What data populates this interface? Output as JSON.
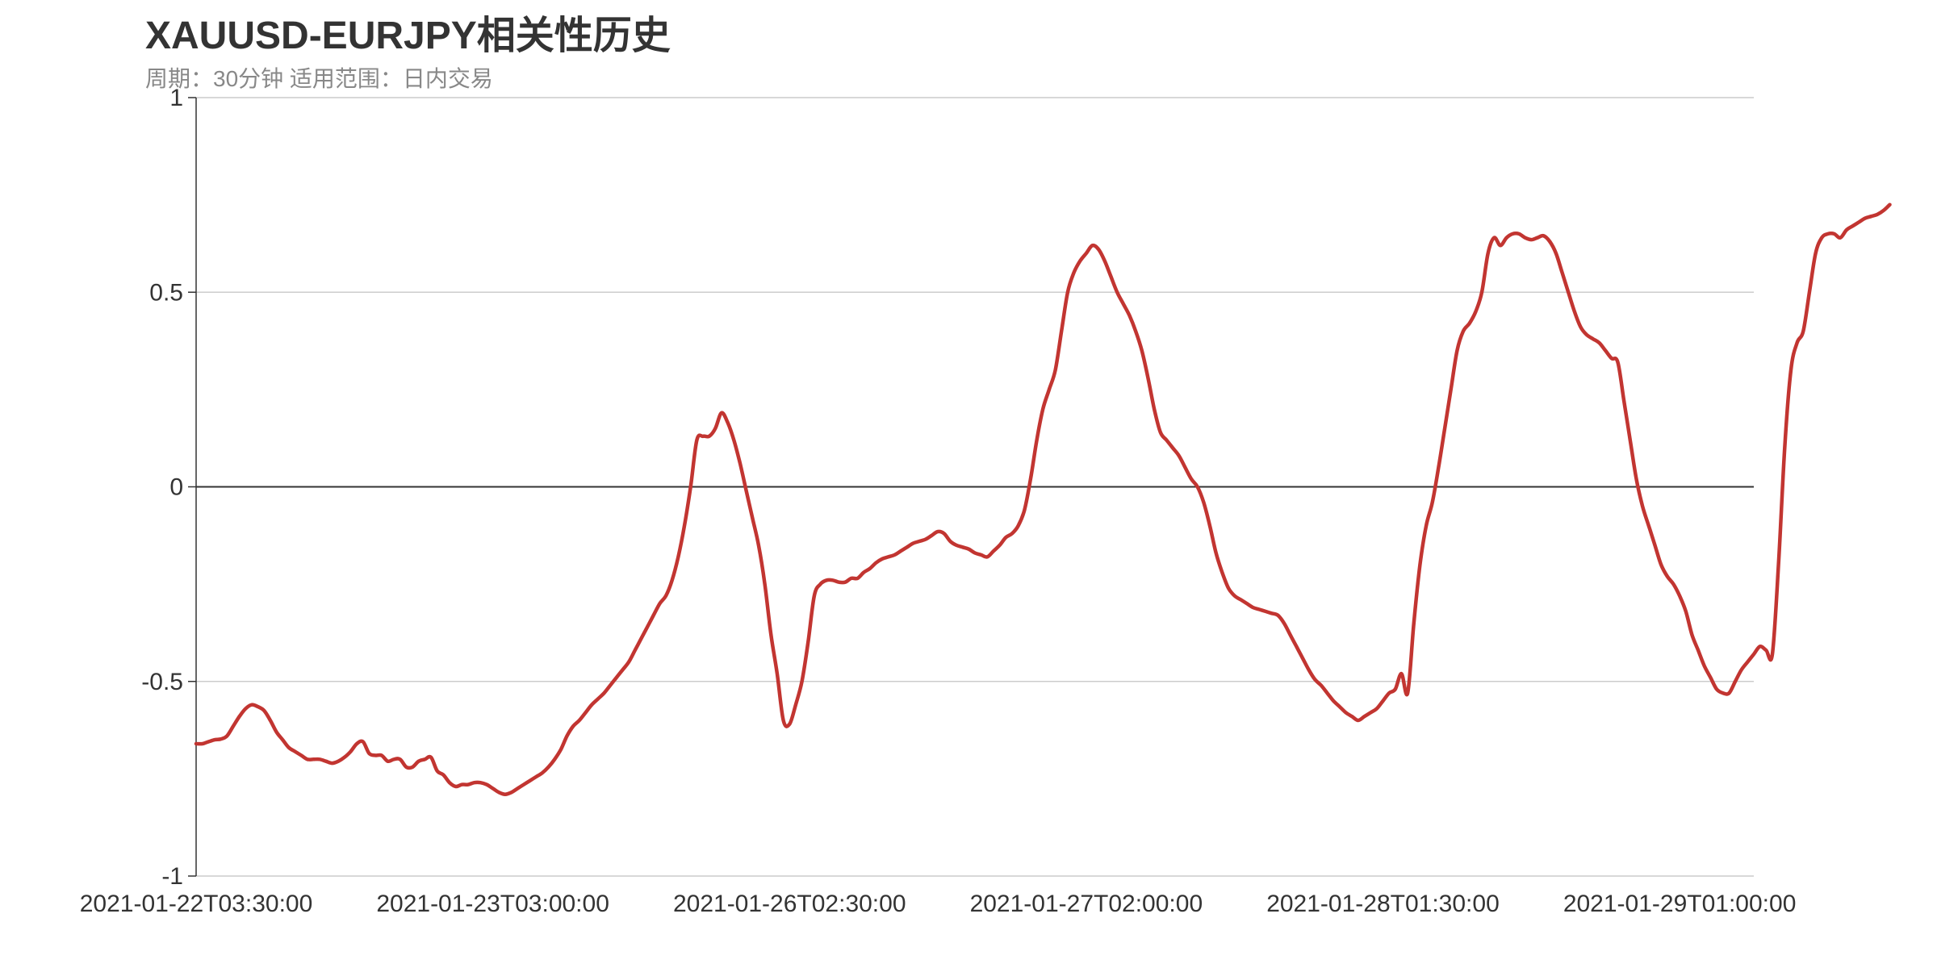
{
  "title": "XAUUSD-EURJPY相关性历史",
  "subtitle": "周期：30分钟 适用范围：日内交易",
  "colors": {
    "line": "#c23531",
    "axis": "#333333",
    "grid": "#cccccc",
    "zero_line": "#333333",
    "title": "#333333",
    "subtitle": "#888888"
  },
  "chart_data": {
    "type": "line",
    "title": "XAUUSD-EURJPY相关性历史",
    "subtitle": "周期：30分钟 适用范围：日内交易",
    "xlabel": "",
    "ylabel": "",
    "ylim": [
      -1,
      1
    ],
    "yticks": [
      1,
      0.5,
      0,
      -0.5,
      -1
    ],
    "ytick_labels": [
      "1",
      "0.5",
      "0",
      "-0.5",
      "-1"
    ],
    "xtick_labels": [
      "2021-01-22T03:30:00",
      "2021-01-23T03:00:00",
      "2021-01-26T02:30:00",
      "2021-01-27T02:00:00",
      "2021-01-28T01:30:00",
      "2021-01-29T01:00:00"
    ],
    "xtick_positions": [
      0,
      48,
      96,
      144,
      192,
      240
    ],
    "x_range": [
      0,
      252
    ],
    "grid": true,
    "legend": "none",
    "series": [
      {
        "values": [
          -0.66,
          -0.66,
          -0.655,
          -0.65,
          -0.648,
          -0.64,
          -0.615,
          -0.59,
          -0.57,
          -0.56,
          -0.565,
          -0.575,
          -0.6,
          -0.63,
          -0.65,
          -0.67,
          -0.68,
          -0.69,
          -0.7,
          -0.7,
          -0.7,
          -0.705,
          -0.71,
          -0.705,
          -0.695,
          -0.68,
          -0.66,
          -0.655,
          -0.685,
          -0.69,
          -0.69,
          -0.705,
          -0.7,
          -0.7,
          -0.72,
          -0.72,
          -0.705,
          -0.7,
          -0.695,
          -0.73,
          -0.74,
          -0.76,
          -0.77,
          -0.765,
          -0.765,
          -0.76,
          -0.76,
          -0.765,
          -0.775,
          -0.785,
          -0.79,
          -0.785,
          -0.775,
          -0.765,
          -0.755,
          -0.745,
          -0.735,
          -0.72,
          -0.7,
          -0.675,
          -0.64,
          -0.615,
          -0.6,
          -0.58,
          -0.56,
          -0.545,
          -0.53,
          -0.51,
          -0.49,
          -0.47,
          -0.45,
          -0.42,
          -0.39,
          -0.36,
          -0.33,
          -0.3,
          -0.28,
          -0.24,
          -0.18,
          -0.1,
          0.0,
          0.12,
          0.13,
          0.13,
          0.15,
          0.19,
          0.165,
          0.12,
          0.06,
          -0.01,
          -0.08,
          -0.15,
          -0.25,
          -0.38,
          -0.48,
          -0.6,
          -0.61,
          -0.56,
          -0.5,
          -0.4,
          -0.28,
          -0.25,
          -0.24,
          -0.24,
          -0.245,
          -0.245,
          -0.235,
          -0.235,
          -0.22,
          -0.21,
          -0.195,
          -0.185,
          -0.18,
          -0.175,
          -0.165,
          -0.155,
          -0.145,
          -0.14,
          -0.135,
          -0.125,
          -0.115,
          -0.12,
          -0.14,
          -0.15,
          -0.155,
          -0.16,
          -0.17,
          -0.175,
          -0.18,
          -0.165,
          -0.15,
          -0.13,
          -0.12,
          -0.1,
          -0.06,
          0.02,
          0.12,
          0.2,
          0.25,
          0.3,
          0.4,
          0.5,
          0.55,
          0.58,
          0.6,
          0.62,
          0.61,
          0.58,
          0.54,
          0.5,
          0.47,
          0.44,
          0.4,
          0.35,
          0.28,
          0.2,
          0.14,
          0.12,
          0.1,
          0.08,
          0.05,
          0.02,
          0.0,
          -0.04,
          -0.1,
          -0.17,
          -0.22,
          -0.26,
          -0.28,
          -0.29,
          -0.3,
          -0.31,
          -0.315,
          -0.32,
          -0.325,
          -0.33,
          -0.35,
          -0.38,
          -0.41,
          -0.44,
          -0.47,
          -0.495,
          -0.51,
          -0.53,
          -0.55,
          -0.565,
          -0.58,
          -0.59,
          -0.6,
          -0.59,
          -0.58,
          -0.57,
          -0.55,
          -0.53,
          -0.52,
          -0.48,
          -0.53,
          -0.35,
          -0.2,
          -0.1,
          -0.04,
          0.05,
          0.15,
          0.25,
          0.35,
          0.4,
          0.42,
          0.45,
          0.5,
          0.6,
          0.64,
          0.62,
          0.64,
          0.65,
          0.65,
          0.64,
          0.635,
          0.64,
          0.645,
          0.63,
          0.6,
          0.55,
          0.5,
          0.45,
          0.41,
          0.39,
          0.38,
          0.37,
          0.35,
          0.33,
          0.32,
          0.22,
          0.12,
          0.02,
          -0.05,
          -0.1,
          -0.15,
          -0.2,
          -0.23,
          -0.25,
          -0.28,
          -0.32,
          -0.38,
          -0.42,
          -0.46,
          -0.49,
          -0.52,
          -0.53,
          -0.53,
          -0.5,
          -0.47,
          -0.45,
          -0.43,
          -0.41,
          -0.42,
          -0.43,
          -0.2,
          0.1,
          0.3,
          0.37,
          0.4,
          0.5,
          0.6,
          0.64,
          0.65,
          0.65,
          0.64,
          0.66,
          0.67,
          0.68,
          0.69,
          0.695,
          0.7,
          0.71,
          0.725
        ]
      }
    ]
  }
}
